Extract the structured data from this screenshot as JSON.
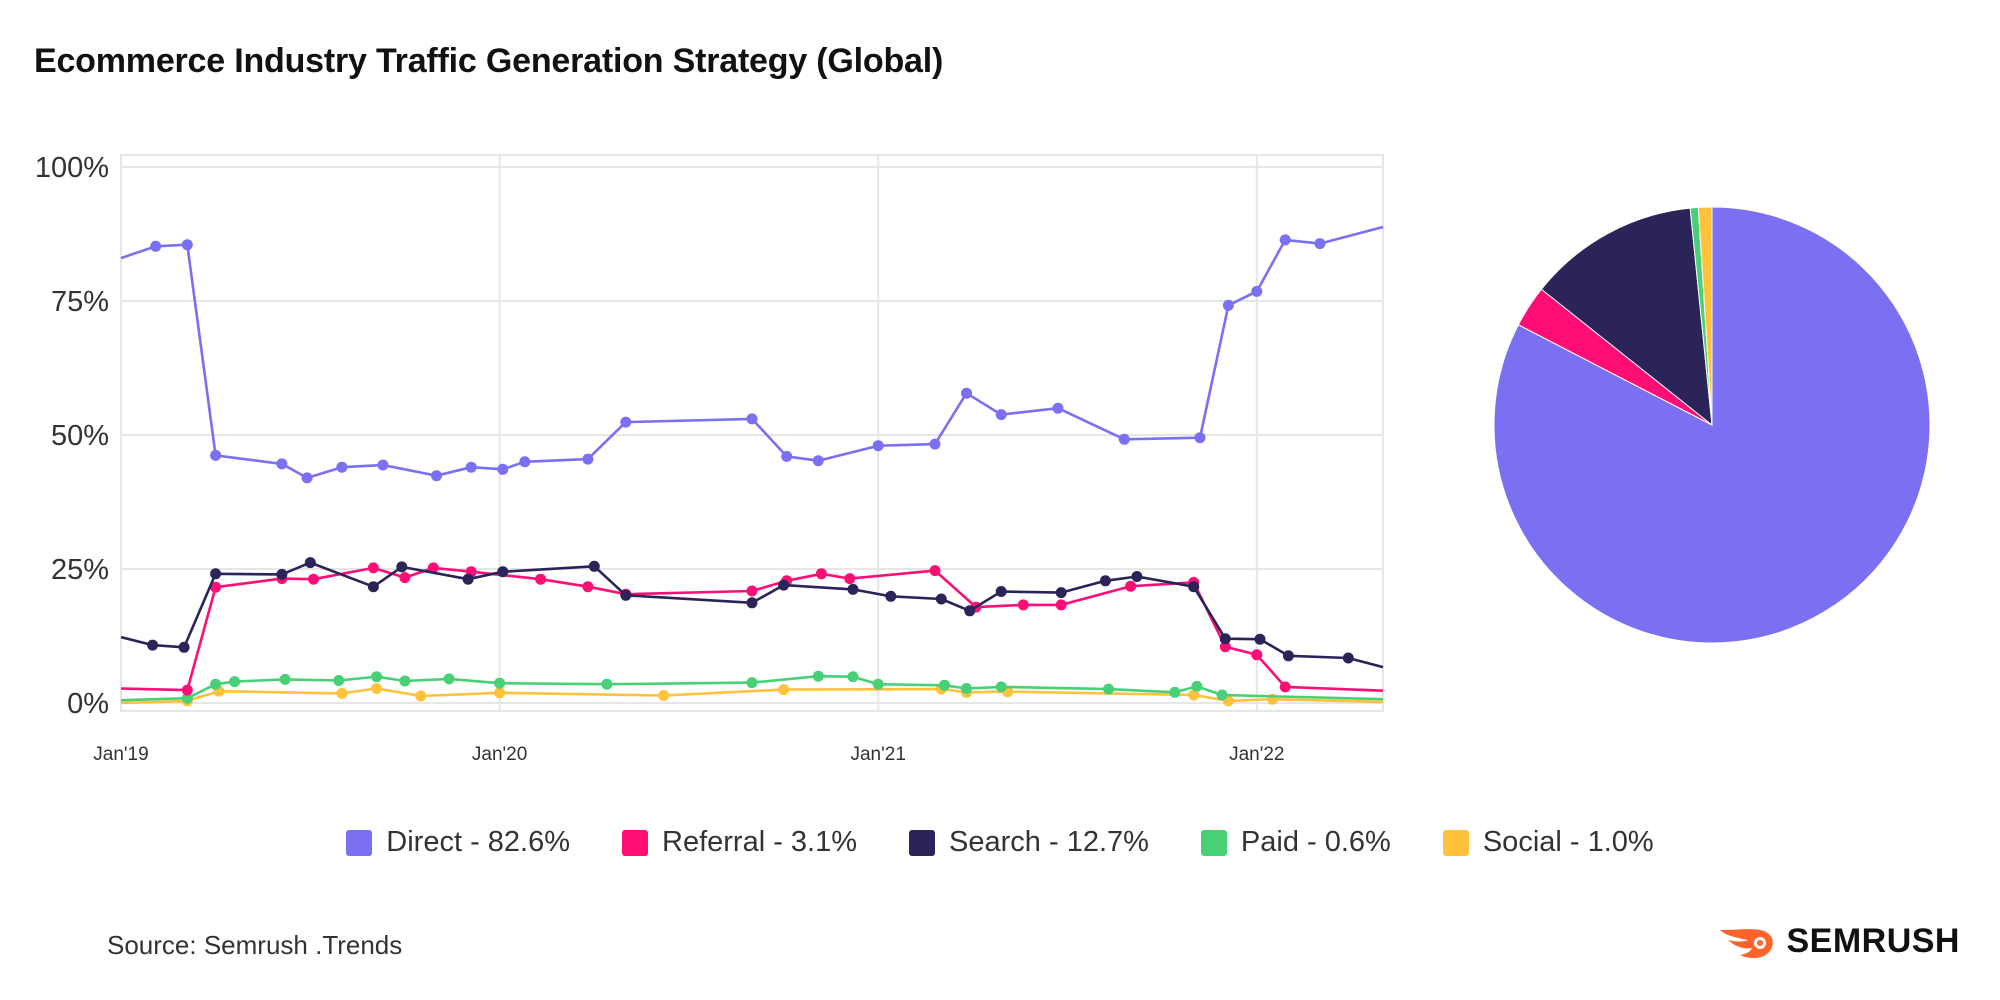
{
  "chart_data": {
    "type": "line",
    "title": "Ecommerce Industry Traffic Generation Strategy (Global)",
    "xlabel": "",
    "ylabel": "",
    "ylim": [
      0,
      100
    ],
    "yticks": [
      "0%",
      "25%",
      "50%",
      "75%",
      "100%"
    ],
    "xticks": [
      {
        "label": "Jan'19",
        "x": 0
      },
      {
        "label": "Jan'20",
        "x": 12
      },
      {
        "label": "Jan'21",
        "x": 24
      },
      {
        "label": "Jan'22",
        "x": 36
      }
    ],
    "x_range": [
      0,
      40
    ],
    "series": [
      {
        "name": "Direct",
        "color": "#7b6ff2",
        "points": [
          [
            0,
            83
          ],
          [
            1.1,
            85.2
          ],
          [
            2.1,
            85.5
          ],
          [
            3.0,
            46.2
          ],
          [
            5.1,
            44.6
          ],
          [
            5.9,
            42
          ],
          [
            7.0,
            44
          ],
          [
            8.3,
            44.4
          ],
          [
            10.0,
            42.4
          ],
          [
            11.1,
            44
          ],
          [
            12.1,
            43.6
          ],
          [
            12.8,
            45
          ],
          [
            14.8,
            45.5
          ],
          [
            16.0,
            52.4
          ],
          [
            20.0,
            53
          ],
          [
            21.1,
            46
          ],
          [
            22.1,
            45.2
          ],
          [
            24.0,
            48
          ],
          [
            25.8,
            48.3
          ],
          [
            26.8,
            57.8
          ],
          [
            27.9,
            53.8
          ],
          [
            29.7,
            55
          ],
          [
            31.8,
            49.2
          ],
          [
            34.2,
            49.5
          ],
          [
            35.1,
            74.2
          ],
          [
            36.0,
            76.8
          ],
          [
            36.9,
            86.4
          ],
          [
            38.0,
            85.7
          ],
          [
            40,
            88.8
          ]
        ]
      },
      {
        "name": "Referral",
        "color": "#ff0e76",
        "points": [
          [
            0,
            2.7
          ],
          [
            2.1,
            2.4
          ],
          [
            3.0,
            21.6
          ],
          [
            5.1,
            23.2
          ],
          [
            6.1,
            23.1
          ],
          [
            8.0,
            25.2
          ],
          [
            9.0,
            23.4
          ],
          [
            9.9,
            25.2
          ],
          [
            11.1,
            24.5
          ],
          [
            13.3,
            23.1
          ],
          [
            14.8,
            21.7
          ],
          [
            16.0,
            20.3
          ],
          [
            20.0,
            20.9
          ],
          [
            21.1,
            22.8
          ],
          [
            22.2,
            24.1
          ],
          [
            23.1,
            23.2
          ],
          [
            25.8,
            24.7
          ],
          [
            27.1,
            17.9
          ],
          [
            28.6,
            18.3
          ],
          [
            29.8,
            18.3
          ],
          [
            32.0,
            21.8
          ],
          [
            34.0,
            22.5
          ],
          [
            35.0,
            10.5
          ],
          [
            36.0,
            9
          ],
          [
            36.9,
            3
          ],
          [
            40,
            2.3
          ]
        ]
      },
      {
        "name": "Search",
        "color": "#2a2459",
        "points": [
          [
            0,
            12.3
          ],
          [
            1.0,
            10.8
          ],
          [
            2.0,
            10.4
          ],
          [
            3.0,
            24.1
          ],
          [
            5.1,
            24
          ],
          [
            6.0,
            26.2
          ],
          [
            8.0,
            21.7
          ],
          [
            8.9,
            25.4
          ],
          [
            11.0,
            23.1
          ],
          [
            12.1,
            24.5
          ],
          [
            15.0,
            25.5
          ],
          [
            16.0,
            20.1
          ],
          [
            20.0,
            18.7
          ],
          [
            21.0,
            22
          ],
          [
            23.2,
            21.2
          ],
          [
            24.4,
            19.9
          ],
          [
            26.0,
            19.4
          ],
          [
            26.9,
            17.2
          ],
          [
            27.9,
            20.8
          ],
          [
            29.8,
            20.6
          ],
          [
            31.2,
            22.8
          ],
          [
            32.2,
            23.6
          ],
          [
            34.0,
            21.7
          ],
          [
            35.0,
            12
          ],
          [
            36.1,
            11.9
          ],
          [
            37.0,
            8.8
          ],
          [
            38.9,
            8.4
          ],
          [
            40,
            6.7
          ]
        ]
      },
      {
        "name": "Paid",
        "color": "#48d077",
        "points": [
          [
            0,
            0.5
          ],
          [
            2.1,
            0.9
          ],
          [
            3.0,
            3.5
          ],
          [
            3.6,
            4
          ],
          [
            5.2,
            4.4
          ],
          [
            6.9,
            4.2
          ],
          [
            8.1,
            4.9
          ],
          [
            9.0,
            4.1
          ],
          [
            10.4,
            4.5
          ],
          [
            12.0,
            3.7
          ],
          [
            15.4,
            3.5
          ],
          [
            20.0,
            3.8
          ],
          [
            22.1,
            5
          ],
          [
            23.2,
            4.9
          ],
          [
            24.0,
            3.5
          ],
          [
            26.1,
            3.3
          ],
          [
            26.8,
            2.7
          ],
          [
            27.9,
            3
          ],
          [
            31.3,
            2.6
          ],
          [
            33.4,
            2
          ],
          [
            34.1,
            3.1
          ],
          [
            34.9,
            1.5
          ],
          [
            40,
            0.7
          ]
        ]
      },
      {
        "name": "Social",
        "color": "#ffc23a",
        "points": [
          [
            0,
            0
          ],
          [
            2.1,
            0.4
          ],
          [
            3.1,
            2.2
          ],
          [
            7.0,
            1.8
          ],
          [
            8.1,
            2.7
          ],
          [
            9.5,
            1.3
          ],
          [
            12.0,
            1.9
          ],
          [
            17.2,
            1.4
          ],
          [
            21.0,
            2.5
          ],
          [
            26.0,
            2.6
          ],
          [
            26.8,
            2
          ],
          [
            28.1,
            2.1
          ],
          [
            34.0,
            1.5
          ],
          [
            35.1,
            0.4
          ],
          [
            36.5,
            0.7
          ],
          [
            40,
            0.2
          ]
        ]
      }
    ],
    "pie": {
      "slices": [
        {
          "name": "Direct",
          "value": 82.6,
          "color": "#7b6ff2"
        },
        {
          "name": "Referral",
          "value": 3.1,
          "color": "#ff0e76"
        },
        {
          "name": "Search",
          "value": 12.7,
          "color": "#2a2459"
        },
        {
          "name": "Paid",
          "value": 0.6,
          "color": "#48d077"
        },
        {
          "name": "Social",
          "value": 1.0,
          "color": "#ffc23a"
        }
      ]
    },
    "legend": [
      {
        "label": "Direct - 82.6%",
        "color": "#7b6ff2"
      },
      {
        "label": "Referral - 3.1%",
        "color": "#ff0e76"
      },
      {
        "label": "Search - 12.7%",
        "color": "#2a2459"
      },
      {
        "label": "Paid - 0.6%",
        "color": "#48d077"
      },
      {
        "label": "Social - 1.0%",
        "color": "#ffc23a"
      }
    ]
  },
  "footer": {
    "source": "Source: Semrush .Trends",
    "brand": "SEMRUSH",
    "brand_color": "#ff642d"
  }
}
